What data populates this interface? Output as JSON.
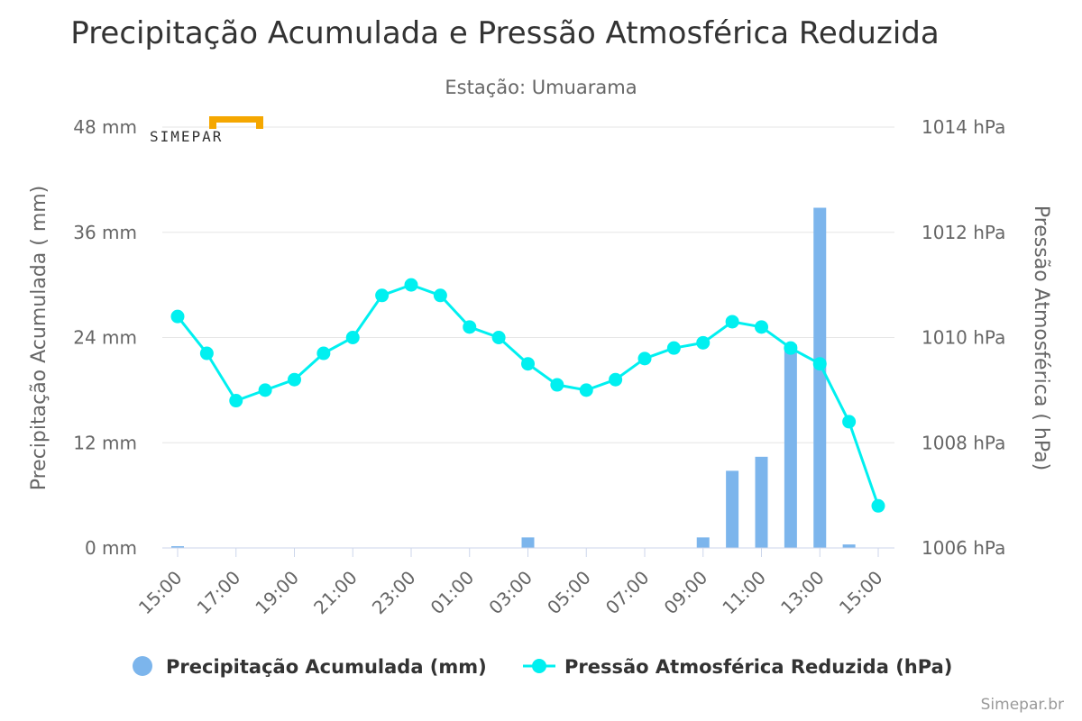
{
  "chart_data": {
    "type": "bar+line",
    "title": "Precipitação Acumulada e Pressão Atmosférica Reduzida",
    "subtitle": "Estação: Umuarama",
    "categories": [
      "15:00",
      "16:00",
      "17:00",
      "18:00",
      "19:00",
      "20:00",
      "21:00",
      "22:00",
      "23:00",
      "00:00",
      "01:00",
      "02:00",
      "03:00",
      "04:00",
      "05:00",
      "06:00",
      "07:00",
      "08:00",
      "09:00",
      "10:00",
      "11:00",
      "12:00",
      "13:00",
      "14:00",
      "15:00"
    ],
    "x_tick_labels": [
      "15:00",
      "17:00",
      "19:00",
      "21:00",
      "23:00",
      "01:00",
      "03:00",
      "05:00",
      "07:00",
      "09:00",
      "11:00",
      "13:00",
      "15:00"
    ],
    "series": [
      {
        "name": "Precipitação Acumulada (mm)",
        "type": "bar",
        "axis": "left",
        "color": "#7cb5ec",
        "values": [
          0.2,
          0,
          0,
          0,
          0,
          0,
          0,
          0,
          0,
          0,
          0,
          0,
          1.2,
          0,
          0,
          0,
          0,
          0,
          1.2,
          8.8,
          10.4,
          23.2,
          38.8,
          0.4,
          0
        ]
      },
      {
        "name": "Pressão Atmosférica Reduzida (hPa)",
        "type": "line",
        "axis": "right",
        "color": "#00f0f0",
        "values": [
          1010.4,
          1009.7,
          1008.8,
          1009.0,
          1009.2,
          1009.7,
          1010.0,
          1010.8,
          1011.0,
          1010.8,
          1010.2,
          1010.0,
          1009.5,
          1009.1,
          1009.0,
          1009.2,
          1009.6,
          1009.8,
          1009.9,
          1010.3,
          1010.2,
          1009.8,
          1009.5,
          1008.4,
          1006.8
        ]
      }
    ],
    "y_left": {
      "label": "Precipitação Acumulada ( mm)",
      "min": 0,
      "max": 48,
      "ticks": [
        0,
        12,
        24,
        36,
        48
      ],
      "unit": "mm"
    },
    "y_right": {
      "label": "Pressão Atmosférica ( hPa)",
      "min": 1006,
      "max": 1014,
      "ticks": [
        1006,
        1008,
        1010,
        1012,
        1014
      ],
      "unit": "hPa"
    },
    "grid": true,
    "legend_position": "bottom-center"
  },
  "logo": {
    "text": "SIMEPAR",
    "accent_color": "#f5a700"
  },
  "credit": "Simepar.br"
}
